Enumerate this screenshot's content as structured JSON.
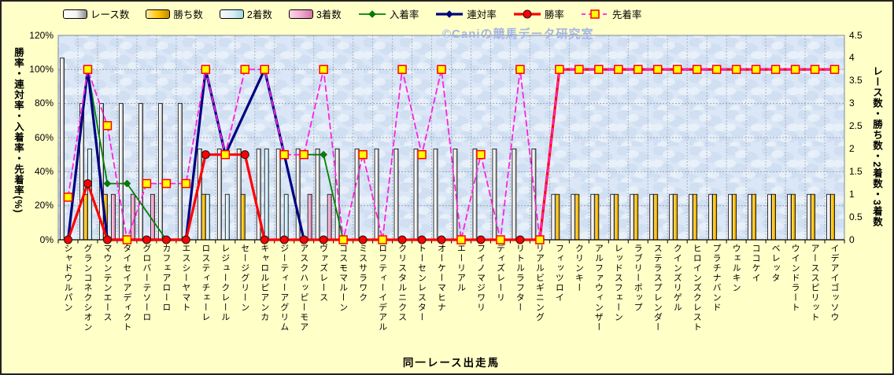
{
  "watermark": "©Caniの競馬データ研究室",
  "axes": {
    "x": {
      "title": "同一レース出走馬"
    },
    "left": {
      "title": "勝率・連対率・入着率・先着率(%)",
      "tick_values": [
        0,
        20,
        40,
        60,
        80,
        100,
        120
      ],
      "tick_labels": [
        "0%",
        "20%",
        "40%",
        "60%",
        "80%",
        "100%",
        "120%"
      ],
      "range": [
        0,
        120
      ]
    },
    "right": {
      "title": "レース数・勝ち数・2着数・3着数",
      "tick_values": [
        0,
        0.5,
        1,
        1.5,
        2,
        2.5,
        3,
        3.5,
        4,
        4.5
      ],
      "tick_labels": [
        "0",
        "0.5",
        "1",
        "1.5",
        "2",
        "2.5",
        "3",
        "3.5",
        "4",
        "4.5"
      ],
      "range": [
        0,
        4.5
      ]
    }
  },
  "legend": {
    "items": [
      {
        "label": "レース数",
        "kind": "bar",
        "series": "races"
      },
      {
        "label": "勝ち数",
        "kind": "bar",
        "series": "wins"
      },
      {
        "label": "2着数",
        "kind": "bar",
        "series": "seconds"
      },
      {
        "label": "3着数",
        "kind": "bar",
        "series": "thirds"
      },
      {
        "label": "入着率",
        "kind": "line",
        "series": "nyuchaku"
      },
      {
        "label": "連対率",
        "kind": "line",
        "series": "rentai"
      },
      {
        "label": "勝率",
        "kind": "line",
        "series": "shoritsu"
      },
      {
        "label": "先着率",
        "kind": "line",
        "series": "senchaku"
      }
    ]
  },
  "colors": {
    "background": "#ffffc8",
    "plot_base": "#dbe7f6",
    "plot_spot_dark": "#c7d9ef",
    "plot_spot_light": "#eef4fb",
    "grid": "#9aa3ad",
    "grid_vertical": "#aab2bd",
    "axis": "#000000",
    "plot_border": "#7f8a99",
    "watermark": "#a4b4e4"
  },
  "chart_data": {
    "type": "combo (bar + line, dual axis)",
    "xlabel": "同一レース出走馬",
    "ylabel_left": "勝率・連対率・入着率・先着率(%)",
    "ylabel_right": "レース数・勝ち数・2着数・3着数",
    "ylim_left": [
      0,
      120
    ],
    "ylim_right": [
      0,
      4.5
    ],
    "grid": true,
    "legend_position": "top",
    "categories": [
      "シャドウルパン",
      "グランコネクシオン",
      "マウンテンエース",
      "タイセイアディクト",
      "グロバーテソーロ",
      "カフェアローロ",
      "エスシーヤマト",
      "ロスティチェーレ",
      "レジュークレール",
      "セージグリーン",
      "キャロルピアンカ",
      "ジーティーアグリム",
      "アスクハッピーモア",
      "ヴァズレース",
      "コスモマルーン",
      "ミスサラワク",
      "ロフティーイデアル",
      "クリスタルニクス",
      "トーセンレスター",
      "オーケーマヒナ",
      "エーリアル",
      "フイノマジワリ",
      "ディズレーリ",
      "リトルラフター",
      "リアルビギニング",
      "フィッツロイ",
      "クリンキー",
      "アルファウィンザー",
      "レッドスフェーン",
      "ラブリーポップ",
      "ステラスプレンダー",
      "クインズリゲル",
      "ヒロインズクレスト",
      "プラチナバンド",
      "ウェルキン",
      "ココケイ",
      "ベレッタ",
      "ウインドラート",
      "アーススピリット",
      "イデアイゴッソウ"
    ],
    "bar_series": [
      {
        "key": "races",
        "name": "レース数",
        "axis": "right",
        "gradient": [
          "#ffffff",
          "#f4f4f4",
          "#8a8a8a"
        ],
        "values": [
          4,
          3,
          3,
          3,
          3,
          3,
          3,
          2,
          2,
          2,
          2,
          2,
          2,
          2,
          2,
          2,
          2,
          2,
          2,
          2,
          2,
          2,
          2,
          2,
          2,
          1,
          1,
          1,
          1,
          1,
          1,
          1,
          1,
          1,
          1,
          1,
          1,
          1,
          1,
          1
        ]
      },
      {
        "key": "wins",
        "name": "勝ち数",
        "axis": "right",
        "gradient": [
          "#ffeca0",
          "#ffc000",
          "#c08c00"
        ],
        "values": [
          0,
          1,
          1,
          0,
          0,
          0,
          0,
          1,
          0,
          1,
          0,
          0,
          0,
          0,
          0,
          0,
          0,
          0,
          0,
          0,
          0,
          0,
          0,
          0,
          0,
          1,
          1,
          1,
          1,
          1,
          1,
          1,
          1,
          1,
          1,
          1,
          1,
          1,
          1,
          1
        ]
      },
      {
        "key": "seconds",
        "name": "2着数",
        "axis": "right",
        "gradient": [
          "#f4fbfd",
          "#d8f0f8",
          "#a2d4e8"
        ],
        "values": [
          0,
          2,
          0,
          0,
          0,
          0,
          0,
          1,
          1,
          0,
          2,
          1,
          0,
          0,
          0,
          0,
          0,
          0,
          0,
          0,
          0,
          0,
          0,
          0,
          0,
          0,
          0,
          0,
          0,
          0,
          0,
          0,
          0,
          0,
          0,
          0,
          0,
          0,
          0,
          0
        ]
      },
      {
        "key": "thirds",
        "name": "3着数",
        "axis": "right",
        "gradient": [
          "#fbd7e8",
          "#f2a6cb",
          "#d276a6"
        ],
        "values": [
          0,
          0,
          1,
          1,
          1,
          0,
          0,
          0,
          0,
          0,
          0,
          0,
          1,
          1,
          0,
          0,
          0,
          0,
          0,
          0,
          0,
          0,
          0,
          0,
          0,
          0,
          0,
          0,
          0,
          0,
          0,
          0,
          0,
          0,
          0,
          0,
          0,
          0,
          0,
          0
        ]
      }
    ],
    "line_series": [
      {
        "key": "nyuchaku",
        "name": "入着率",
        "axis": "left",
        "color": "#008000",
        "width": 1.8,
        "dash": null,
        "marker": {
          "shape": "diamond",
          "size": 4.5,
          "fill": "#008000",
          "stroke": "#004000",
          "stroke_width": 0.5
        },
        "segments": [
          [
            [
              1,
              0
            ],
            [
              2,
              100
            ],
            [
              3,
              33
            ],
            [
              4,
              33
            ],
            [
              6,
              0
            ]
          ],
          [
            [
              13,
              50
            ],
            [
              14,
              50
            ],
            [
              15,
              0
            ]
          ]
        ]
      },
      {
        "key": "rentai",
        "name": "連対率",
        "axis": "left",
        "color": "#000080",
        "width": 3.2,
        "dash": null,
        "marker": {
          "shape": "diamond",
          "size": 4.5,
          "fill": "#000080",
          "stroke": "#000040",
          "stroke_width": 0.5
        },
        "segments": [
          [
            [
              1,
              0
            ],
            [
              2,
              100
            ],
            [
              3,
              0
            ],
            [
              4,
              0
            ],
            [
              5,
              0
            ],
            [
              6,
              0
            ],
            [
              7,
              0
            ],
            [
              8,
              100
            ],
            [
              9,
              50
            ],
            [
              11,
              100
            ],
            [
              12,
              50
            ],
            [
              13,
              0
            ]
          ]
        ]
      },
      {
        "key": "shoritsu",
        "name": "勝率",
        "axis": "left",
        "color": "#ff0000",
        "width": 3.2,
        "dash": null,
        "marker": {
          "shape": "circle",
          "size": 5,
          "fill": "#ff0000",
          "stroke": "#1a1a1a",
          "stroke_width": 1
        },
        "segments": [
          [
            [
              1,
              0
            ],
            [
              2,
              33
            ],
            [
              3,
              0
            ],
            [
              4,
              0
            ],
            [
              5,
              0
            ],
            [
              6,
              0
            ],
            [
              7,
              0
            ],
            [
              8,
              50
            ],
            [
              9,
              50
            ],
            [
              10,
              50
            ],
            [
              11,
              0
            ],
            [
              12,
              0
            ],
            [
              13,
              0
            ],
            [
              14,
              0
            ],
            [
              15,
              0
            ],
            [
              16,
              0
            ],
            [
              17,
              0
            ],
            [
              18,
              0
            ],
            [
              19,
              0
            ],
            [
              20,
              0
            ],
            [
              21,
              0
            ],
            [
              22,
              0
            ],
            [
              23,
              0
            ],
            [
              24,
              0
            ],
            [
              25,
              0
            ],
            [
              26,
              100
            ],
            [
              27,
              100
            ],
            [
              28,
              100
            ],
            [
              29,
              100
            ],
            [
              30,
              100
            ],
            [
              31,
              100
            ],
            [
              32,
              100
            ],
            [
              33,
              100
            ],
            [
              34,
              100
            ],
            [
              35,
              100
            ],
            [
              36,
              100
            ],
            [
              37,
              100
            ],
            [
              38,
              100
            ],
            [
              39,
              100
            ],
            [
              40,
              100
            ]
          ]
        ]
      },
      {
        "key": "senchaku",
        "name": "先着率",
        "axis": "left",
        "color": "#ff22dd",
        "width": 1.8,
        "dash": "7 5",
        "marker": {
          "shape": "square",
          "size": 5,
          "fill": "#ffff00",
          "stroke": "#ff0000",
          "stroke_width": 1.5
        },
        "segments": [
          [
            [
              1,
              25
            ],
            [
              2,
              100
            ],
            [
              3,
              67
            ],
            [
              4,
              0
            ],
            [
              5,
              33
            ],
            [
              6,
              33
            ],
            [
              7,
              33
            ],
            [
              8,
              100
            ],
            [
              9,
              50
            ],
            [
              10,
              100
            ],
            [
              11,
              100
            ],
            [
              12,
              50
            ],
            [
              13,
              50
            ],
            [
              14,
              100
            ],
            [
              15,
              0
            ],
            [
              16,
              50
            ],
            [
              17,
              0
            ],
            [
              18,
              100
            ],
            [
              19,
              50
            ],
            [
              20,
              100
            ],
            [
              21,
              0
            ],
            [
              22,
              50
            ],
            [
              23,
              0
            ],
            [
              24,
              100
            ],
            [
              25,
              0
            ],
            [
              26,
              100
            ],
            [
              27,
              100
            ],
            [
              28,
              100
            ],
            [
              29,
              100
            ],
            [
              30,
              100
            ],
            [
              31,
              100
            ],
            [
              32,
              100
            ],
            [
              33,
              100
            ],
            [
              34,
              100
            ],
            [
              35,
              100
            ],
            [
              36,
              100
            ],
            [
              37,
              100
            ],
            [
              38,
              100
            ],
            [
              39,
              100
            ],
            [
              40,
              100
            ]
          ]
        ]
      }
    ]
  }
}
